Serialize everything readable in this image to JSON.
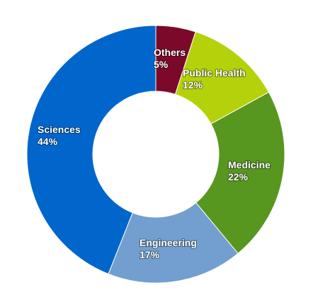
{
  "chart_data": {
    "type": "pie",
    "variant": "donut",
    "title": "",
    "categories": [
      "Others",
      "Public Health",
      "Medicine",
      "Engineering",
      "Sciences"
    ],
    "values": [
      5,
      12,
      22,
      17,
      44
    ],
    "value_labels": [
      "5%",
      "12%",
      "22%",
      "17%",
      "44%"
    ],
    "colors": [
      "#7b0a2a",
      "#b5d10a",
      "#57961f",
      "#729fcf",
      "#0066cc"
    ],
    "start_angle": "top (12 o'clock), clockwise",
    "legend": "none"
  }
}
